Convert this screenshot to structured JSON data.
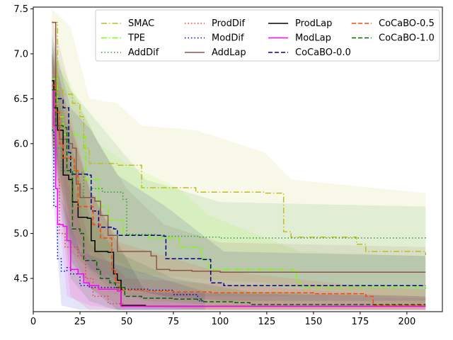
{
  "chart_data": {
    "type": "line",
    "title": "",
    "xlabel": "",
    "ylabel": "",
    "xlim": [
      0,
      219
    ],
    "ylim": [
      4.13,
      7.52
    ],
    "xticks": [
      0,
      25,
      50,
      75,
      100,
      125,
      150,
      175,
      200
    ],
    "yticks": [
      4.5,
      5.0,
      5.5,
      6.0,
      6.5,
      7.0,
      7.5
    ],
    "ytick_labels": [
      "4.5",
      "5.0",
      "5.5",
      "6.0",
      "6.5",
      "7.0",
      "7.5"
    ],
    "legend_location": "top-right",
    "legend_columns": 4,
    "series": [
      {
        "name": "SMAC",
        "color": "#bcbd22",
        "style": "dashdot",
        "points": [
          [
            10,
            7.35
          ],
          [
            13,
            6.6
          ],
          [
            16,
            6.55
          ],
          [
            21,
            6.45
          ],
          [
            25,
            6.3
          ],
          [
            27,
            5.95
          ],
          [
            30,
            5.78
          ],
          [
            45,
            5.76
          ],
          [
            58,
            5.51
          ],
          [
            87,
            5.46
          ],
          [
            124,
            5.45
          ],
          [
            134,
            5.02
          ],
          [
            138,
            4.96
          ],
          [
            173,
            4.88
          ],
          [
            178,
            4.8
          ],
          [
            210,
            4.76
          ]
        ],
        "band": [
          [
            10,
            5.8,
            7.5
          ],
          [
            20,
            5.2,
            7.3
          ],
          [
            30,
            4.8,
            6.5
          ],
          [
            45,
            4.7,
            6.45
          ],
          [
            58,
            4.55,
            6.2
          ],
          [
            87,
            4.5,
            6.15
          ],
          [
            124,
            4.45,
            5.9
          ],
          [
            138,
            4.4,
            5.6
          ],
          [
            210,
            4.3,
            5.45
          ]
        ]
      },
      {
        "name": "TPE",
        "color": "#7cfc00",
        "style": "dashdot",
        "points": [
          [
            10,
            6.72
          ],
          [
            13,
            6.3
          ],
          [
            16,
            6.1
          ],
          [
            25,
            6.08
          ],
          [
            28,
            5.6
          ],
          [
            35,
            5.3
          ],
          [
            40,
            5.15
          ],
          [
            48,
            4.98
          ],
          [
            62,
            4.95
          ],
          [
            78,
            4.85
          ],
          [
            90,
            4.72
          ],
          [
            94,
            4.6
          ],
          [
            139,
            4.58
          ],
          [
            141,
            4.45
          ],
          [
            143,
            4.4
          ],
          [
            210,
            4.38
          ]
        ],
        "band": [
          [
            10,
            6.1,
            7.1
          ],
          [
            25,
            4.7,
            6.45
          ],
          [
            35,
            4.4,
            6.0
          ],
          [
            48,
            4.3,
            5.8
          ],
          [
            78,
            4.25,
            5.5
          ],
          [
            94,
            4.2,
            5.2
          ],
          [
            143,
            4.2,
            4.8
          ],
          [
            210,
            4.2,
            4.75
          ]
        ]
      },
      {
        "name": "AddDif",
        "color": "#2ca02c",
        "style": "dotted",
        "points": [
          [
            10,
            6.7
          ],
          [
            11,
            6.4
          ],
          [
            12,
            5.95
          ],
          [
            15,
            5.7
          ],
          [
            23,
            5.68
          ],
          [
            27,
            5.4
          ],
          [
            31,
            5.5
          ],
          [
            37,
            5.46
          ],
          [
            48,
            5.38
          ],
          [
            50,
            4.99
          ],
          [
            65,
            4.98
          ],
          [
            69,
            4.97
          ],
          [
            88,
            4.96
          ],
          [
            100,
            4.95
          ],
          [
            210,
            4.94
          ]
        ],
        "band": [
          [
            10,
            6.2,
            7.0
          ],
          [
            20,
            4.8,
            6.6
          ],
          [
            40,
            4.4,
            6.1
          ],
          [
            60,
            4.25,
            5.6
          ],
          [
            100,
            4.2,
            5.35
          ],
          [
            210,
            4.2,
            5.3
          ]
        ]
      },
      {
        "name": "ProdDif",
        "color": "#ff3030",
        "style": "dotted",
        "points": [
          [
            10,
            6.7
          ],
          [
            12,
            5.6
          ],
          [
            14,
            5.0
          ],
          [
            17,
            4.85
          ],
          [
            24,
            4.75
          ],
          [
            28,
            4.5
          ],
          [
            32,
            4.3
          ],
          [
            40,
            4.22
          ],
          [
            48,
            4.19
          ],
          [
            210,
            4.19
          ]
        ],
        "band": [
          [
            10,
            6.0,
            7.0
          ],
          [
            20,
            4.3,
            5.7
          ],
          [
            30,
            4.15,
            4.9
          ],
          [
            50,
            4.15,
            4.5
          ],
          [
            210,
            4.15,
            4.3
          ]
        ]
      },
      {
        "name": "ModDif",
        "color": "#0000cd",
        "style": "dotted",
        "points": [
          [
            10,
            6.15
          ],
          [
            11,
            5.3
          ],
          [
            13,
            4.72
          ],
          [
            15,
            4.58
          ],
          [
            18,
            4.62
          ],
          [
            20,
            4.55
          ],
          [
            25,
            4.42
          ],
          [
            30,
            4.4
          ],
          [
            45,
            4.38
          ],
          [
            62,
            4.37
          ],
          [
            75,
            4.32
          ],
          [
            88,
            4.25
          ],
          [
            92,
            4.24
          ]
        ],
        "band": [
          [
            10,
            5.6,
            6.7
          ],
          [
            15,
            4.2,
            5.4
          ],
          [
            25,
            4.15,
            4.8
          ],
          [
            45,
            4.15,
            4.65
          ],
          [
            92,
            4.15,
            4.35
          ]
        ]
      },
      {
        "name": "AddLap",
        "color": "#8c564b",
        "style": "solid",
        "points": [
          [
            10,
            7.35
          ],
          [
            12,
            6.2
          ],
          [
            14,
            6.05
          ],
          [
            19,
            6.0
          ],
          [
            21,
            5.95
          ],
          [
            23,
            5.55
          ],
          [
            25,
            5.4
          ],
          [
            33,
            5.36
          ],
          [
            36,
            5.2
          ],
          [
            40,
            4.98
          ],
          [
            45,
            4.8
          ],
          [
            63,
            4.75
          ],
          [
            66,
            4.6
          ],
          [
            73,
            4.59
          ],
          [
            85,
            4.58
          ],
          [
            100,
            4.57
          ],
          [
            210,
            4.57
          ]
        ],
        "band": [
          [
            10,
            6.7,
            7.4
          ],
          [
            20,
            5.0,
            6.6
          ],
          [
            35,
            4.6,
            6.0
          ],
          [
            50,
            4.4,
            5.5
          ],
          [
            70,
            4.3,
            5.1
          ],
          [
            100,
            4.3,
            4.9
          ],
          [
            210,
            4.3,
            4.85
          ]
        ]
      },
      {
        "name": "ProdLap",
        "color": "#000000",
        "style": "solid",
        "points": [
          [
            10,
            6.7
          ],
          [
            11,
            6.4
          ],
          [
            13,
            6.15
          ],
          [
            16,
            5.65
          ],
          [
            19,
            5.6
          ],
          [
            21,
            5.35
          ],
          [
            24,
            5.18
          ],
          [
            29,
            5.17
          ],
          [
            31,
            4.92
          ],
          [
            33,
            4.8
          ],
          [
            40,
            4.79
          ],
          [
            43,
            4.55
          ],
          [
            45,
            4.48
          ],
          [
            47,
            4.2
          ],
          [
            60,
            4.19
          ],
          [
            210,
            4.19
          ]
        ],
        "band": [
          [
            10,
            6.1,
            7.1
          ],
          [
            20,
            4.7,
            6.2
          ],
          [
            30,
            4.4,
            5.5
          ],
          [
            45,
            4.15,
            4.9
          ],
          [
            60,
            4.15,
            4.35
          ],
          [
            210,
            4.15,
            4.3
          ]
        ]
      },
      {
        "name": "ModLap",
        "color": "#ff00ff",
        "style": "solid",
        "points": [
          [
            10,
            6.6
          ],
          [
            11,
            6.2
          ],
          [
            12,
            5.5
          ],
          [
            13,
            5.1
          ],
          [
            16,
            5.08
          ],
          [
            18,
            4.92
          ],
          [
            20,
            4.6
          ],
          [
            24,
            4.55
          ],
          [
            27,
            4.45
          ],
          [
            30,
            4.42
          ],
          [
            35,
            4.38
          ],
          [
            45,
            4.36
          ],
          [
            47,
            4.19
          ],
          [
            210,
            4.19
          ]
        ],
        "band": [
          [
            10,
            6.0,
            7.0
          ],
          [
            18,
            4.3,
            5.6
          ],
          [
            30,
            4.2,
            4.75
          ],
          [
            47,
            4.15,
            4.35
          ],
          [
            210,
            4.15,
            4.28
          ]
        ]
      },
      {
        "name": "CoCaBO-0.0",
        "color": "#00008b",
        "style": "dashed",
        "points": [
          [
            10,
            6.65
          ],
          [
            12,
            6.5
          ],
          [
            16,
            6.4
          ],
          [
            19,
            5.9
          ],
          [
            20,
            5.66
          ],
          [
            29,
            5.65
          ],
          [
            31,
            5.25
          ],
          [
            35,
            5.07
          ],
          [
            43,
            5.05
          ],
          [
            45,
            4.98
          ],
          [
            70,
            4.97
          ],
          [
            71,
            4.72
          ],
          [
            90,
            4.71
          ],
          [
            95,
            4.45
          ],
          [
            102,
            4.42
          ],
          [
            210,
            4.42
          ]
        ],
        "band": [
          [
            10,
            6.2,
            7.2
          ],
          [
            20,
            4.9,
            6.4
          ],
          [
            31,
            4.6,
            6.15
          ],
          [
            45,
            4.4,
            5.65
          ],
          [
            71,
            4.3,
            5.3
          ],
          [
            102,
            4.25,
            4.8
          ],
          [
            210,
            4.25,
            4.75
          ]
        ]
      },
      {
        "name": "CoCaBO-0.5",
        "color": "#ff4500",
        "style": "dashed",
        "points": [
          [
            10,
            6.65
          ],
          [
            12,
            6.35
          ],
          [
            14,
            6.0
          ],
          [
            16,
            5.84
          ],
          [
            22,
            5.7
          ],
          [
            24,
            5.3
          ],
          [
            32,
            5.1
          ],
          [
            36,
            4.95
          ],
          [
            42,
            4.6
          ],
          [
            44,
            4.45
          ],
          [
            46,
            4.37
          ],
          [
            60,
            4.36
          ],
          [
            75,
            4.35
          ],
          [
            95,
            4.34
          ],
          [
            150,
            4.33
          ],
          [
            178,
            4.3
          ],
          [
            182,
            4.2
          ],
          [
            210,
            4.2
          ]
        ],
        "band": [
          [
            10,
            6.1,
            7.0
          ],
          [
            20,
            4.8,
            6.3
          ],
          [
            30,
            4.4,
            5.5
          ],
          [
            46,
            4.2,
            4.9
          ],
          [
            95,
            4.15,
            4.6
          ],
          [
            182,
            4.15,
            4.4
          ],
          [
            210,
            4.15,
            4.38
          ]
        ]
      },
      {
        "name": "CoCaBO-1.0",
        "color": "#006400",
        "style": "dashed",
        "points": [
          [
            10,
            6.6
          ],
          [
            12,
            6.2
          ],
          [
            16,
            6.18
          ],
          [
            18,
            5.7
          ],
          [
            21,
            5.05
          ],
          [
            25,
            5.0
          ],
          [
            27,
            4.7
          ],
          [
            34,
            4.6
          ],
          [
            36,
            4.5
          ],
          [
            41,
            4.45
          ],
          [
            44,
            4.4
          ],
          [
            49,
            4.3
          ],
          [
            58,
            4.28
          ],
          [
            75,
            4.27
          ],
          [
            90,
            4.24
          ],
          [
            108,
            4.23
          ],
          [
            116,
            4.21
          ],
          [
            210,
            4.21
          ]
        ],
        "band": [
          [
            10,
            6.0,
            7.0
          ],
          [
            20,
            4.5,
            6.0
          ],
          [
            30,
            4.25,
            5.2
          ],
          [
            44,
            4.15,
            4.8
          ],
          [
            75,
            4.15,
            4.5
          ],
          [
            116,
            4.15,
            4.35
          ],
          [
            210,
            4.15,
            4.3
          ]
        ]
      }
    ]
  }
}
